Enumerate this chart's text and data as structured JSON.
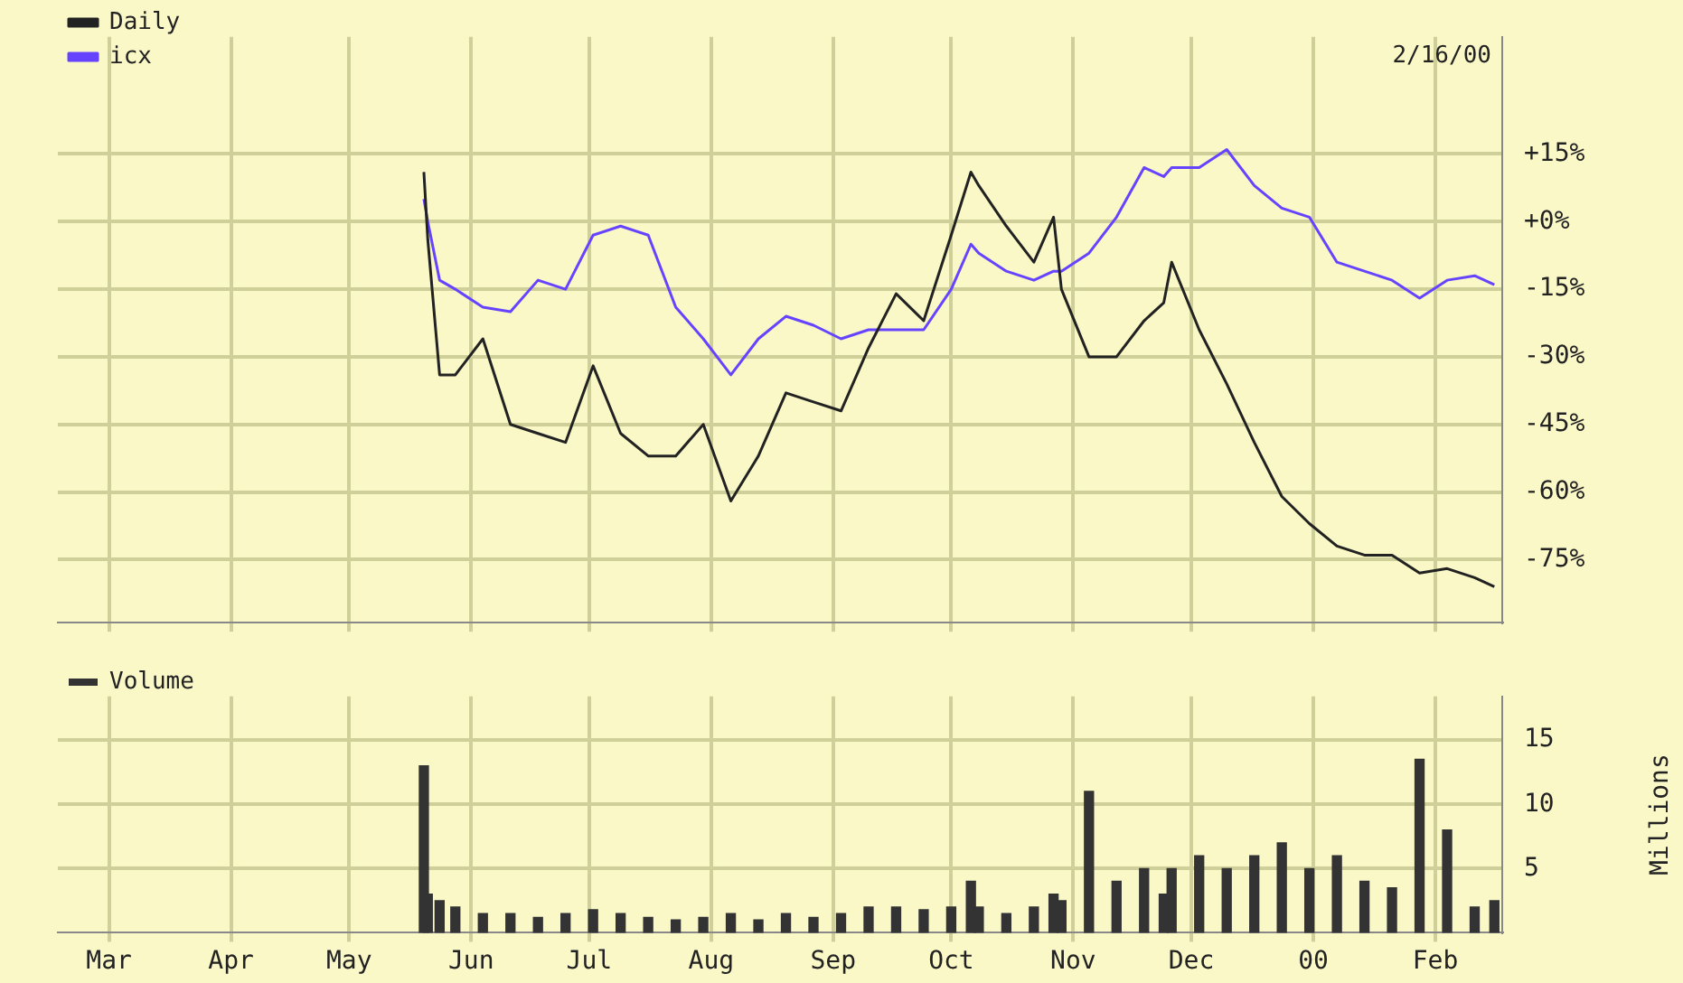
{
  "chart_data": [
    {
      "type": "line",
      "annotations": [
        "2/16/00"
      ],
      "legend": "top left",
      "marker": "none",
      "grid": true,
      "tick_labels": "y",
      "x": [
        "1999-05-20",
        "1999-05-21",
        "1999-05-24",
        "1999-05-28",
        "1999-06-04",
        "1999-06-11",
        "1999-06-18",
        "1999-06-25",
        "1999-07-02",
        "1999-07-09",
        "1999-07-16",
        "1999-07-23",
        "1999-07-30",
        "1999-08-06",
        "1999-08-13",
        "1999-08-20",
        "1999-08-27",
        "1999-09-03",
        "1999-09-10",
        "1999-09-17",
        "1999-09-24",
        "1999-10-01",
        "1999-10-06",
        "1999-10-08",
        "1999-10-15",
        "1999-10-22",
        "1999-10-27",
        "1999-10-29",
        "1999-11-05",
        "1999-11-12",
        "1999-11-19",
        "1999-11-24",
        "1999-11-26",
        "1999-12-03",
        "1999-12-10",
        "1999-12-17",
        "1999-12-24",
        "1999-12-31",
        "2000-01-07",
        "2000-01-14",
        "2000-01-21",
        "2000-01-28",
        "2000-02-04",
        "2000-02-11",
        "2000-02-16"
      ],
      "xlim": [
        "1999-02-16",
        "2000-02-18"
      ],
      "xticks": [
        {
          "value": "1999-03-01",
          "label": null
        },
        {
          "value": "1999-04-01",
          "label": null
        },
        {
          "value": "1999-05-01",
          "label": null
        },
        {
          "value": "1999-06-01",
          "label": null
        },
        {
          "value": "1999-07-01",
          "label": null
        },
        {
          "value": "1999-08-01",
          "label": null
        },
        {
          "value": "1999-09-01",
          "label": null
        },
        {
          "value": "1999-10-01",
          "label": null
        },
        {
          "value": "1999-11-01",
          "label": null
        },
        {
          "value": "1999-12-01",
          "label": null
        },
        {
          "value": "2000-01-01",
          "label": null
        },
        {
          "value": "2000-02-01",
          "label": null
        }
      ],
      "ylim": [
        -89,
        41
      ],
      "yticks": [
        {
          "value": 15,
          "label": "+15%"
        },
        {
          "value": 0,
          "label": "+0%"
        },
        {
          "value": -15,
          "label": "-15%"
        },
        {
          "value": -30,
          "label": "-30%"
        },
        {
          "value": -45,
          "label": "-45%"
        },
        {
          "value": -60,
          "label": "-60%"
        },
        {
          "value": -75,
          "label": "-75%"
        }
      ],
      "series": [
        {
          "name": "Daily",
          "color": "#222222",
          "values": [
            11,
            -4,
            -34,
            -34,
            -26,
            -45,
            -47,
            -49,
            -32,
            -47,
            -52,
            -52,
            -45,
            -62,
            -52,
            -38,
            -40,
            -42,
            -28,
            -16,
            -22,
            -3,
            11,
            8,
            -1,
            -9,
            1,
            -15,
            -30,
            -30,
            -22,
            -18,
            -9,
            -24,
            -36,
            -49,
            -61,
            -67,
            -72,
            -74,
            -74,
            -78,
            -77,
            -79,
            -81
          ]
        },
        {
          "name": "icx",
          "color": "#6644ff",
          "values": [
            5,
            0,
            -13,
            -15,
            -19,
            -20,
            -13,
            -15,
            -3,
            -1,
            -3,
            -19,
            -26,
            -34,
            -26,
            -21,
            -23,
            -26,
            -24,
            -24,
            -24,
            -15,
            -5,
            -7,
            -11,
            -13,
            -11,
            -11,
            -7,
            1,
            12,
            10,
            12,
            12,
            16,
            8,
            3,
            1,
            -9,
            -11,
            -13,
            -17,
            -13,
            -12,
            -14
          ]
        }
      ]
    },
    {
      "type": "bar",
      "ylabel": "Millions",
      "legend": "top left",
      "grid": true,
      "x": [
        "1999-05-20",
        "1999-05-21",
        "1999-05-24",
        "1999-05-28",
        "1999-06-04",
        "1999-06-11",
        "1999-06-18",
        "1999-06-25",
        "1999-07-02",
        "1999-07-09",
        "1999-07-16",
        "1999-07-23",
        "1999-07-30",
        "1999-08-06",
        "1999-08-13",
        "1999-08-20",
        "1999-08-27",
        "1999-09-03",
        "1999-09-10",
        "1999-09-17",
        "1999-09-24",
        "1999-10-01",
        "1999-10-06",
        "1999-10-08",
        "1999-10-15",
        "1999-10-22",
        "1999-10-27",
        "1999-10-29",
        "1999-11-05",
        "1999-11-12",
        "1999-11-19",
        "1999-11-24",
        "1999-11-26",
        "1999-12-03",
        "1999-12-10",
        "1999-12-17",
        "1999-12-24",
        "1999-12-31",
        "2000-01-07",
        "2000-01-14",
        "2000-01-21",
        "2000-01-28",
        "2000-02-04",
        "2000-02-11",
        "2000-02-16"
      ],
      "xlim": [
        "1999-02-16",
        "2000-02-18"
      ],
      "xticks": [
        {
          "value": "1999-03-01",
          "label": "Mar"
        },
        {
          "value": "1999-04-01",
          "label": "Apr"
        },
        {
          "value": "1999-05-01",
          "label": "May"
        },
        {
          "value": "1999-06-01",
          "label": "Jun"
        },
        {
          "value": "1999-07-01",
          "label": "Jul"
        },
        {
          "value": "1999-08-01",
          "label": "Aug"
        },
        {
          "value": "1999-09-01",
          "label": "Sep"
        },
        {
          "value": "1999-10-01",
          "label": "Oct"
        },
        {
          "value": "1999-11-01",
          "label": "Nov"
        },
        {
          "value": "1999-12-01",
          "label": "Dec"
        },
        {
          "value": "2000-01-01",
          "label": "00"
        },
        {
          "value": "2000-02-01",
          "label": "Feb"
        }
      ],
      "ylim": [
        0,
        18.4
      ],
      "yticks": [
        5,
        10,
        15
      ],
      "series": [
        {
          "name": "Volume",
          "color": "#333333",
          "values": [
            13,
            3,
            2.5,
            2,
            1.5,
            1.5,
            1.2,
            1.5,
            1.8,
            1.5,
            1.2,
            1,
            1.2,
            1.5,
            1,
            1.5,
            1.2,
            1.5,
            2,
            2,
            1.8,
            2,
            4,
            2,
            1.5,
            2,
            3,
            2.5,
            11,
            4,
            5,
            3,
            5,
            6,
            5,
            6,
            7,
            5,
            6,
            4,
            3.5,
            13.5,
            8,
            2,
            2.5
          ]
        }
      ]
    }
  ]
}
